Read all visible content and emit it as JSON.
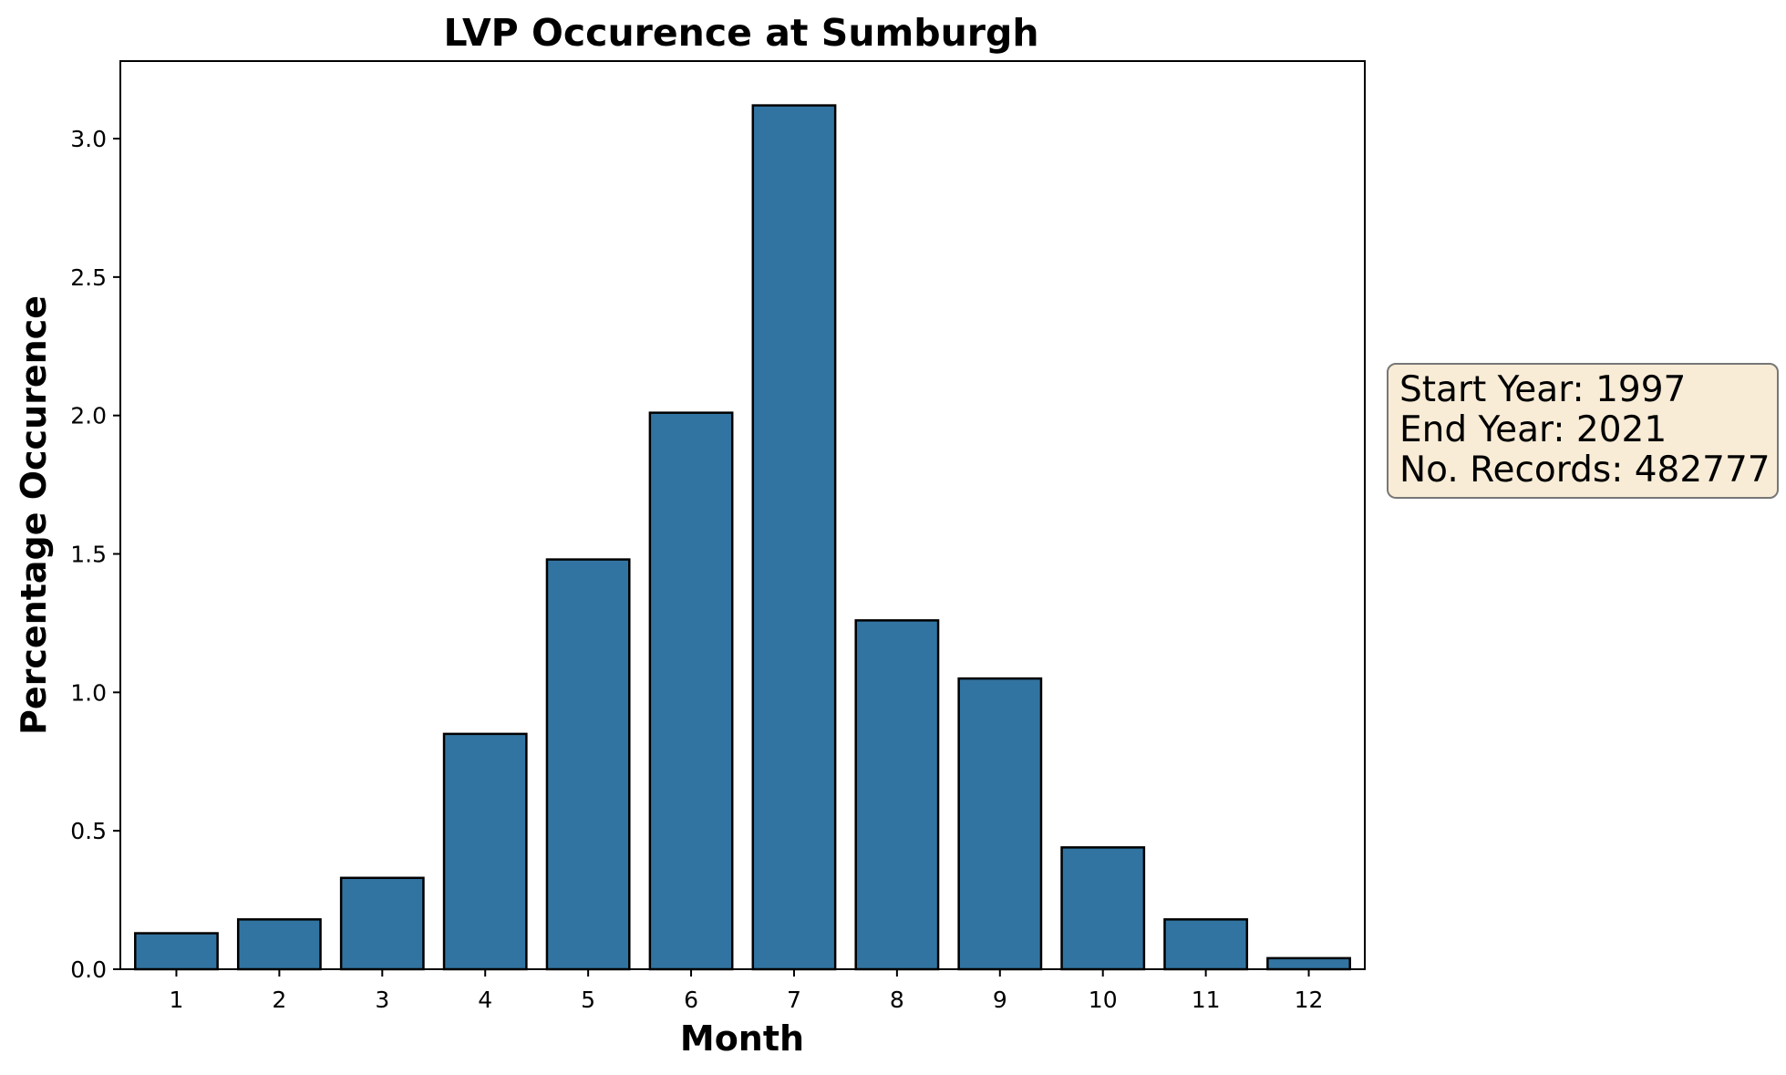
{
  "chart_data": {
    "type": "bar",
    "title": "LVP Occurence at Sumburgh",
    "xlabel": "Month",
    "ylabel": "Percentage Occurence",
    "categories": [
      "1",
      "2",
      "3",
      "4",
      "5",
      "6",
      "7",
      "8",
      "9",
      "10",
      "11",
      "12"
    ],
    "values": [
      0.13,
      0.18,
      0.33,
      0.85,
      1.48,
      2.01,
      3.12,
      1.26,
      1.05,
      0.44,
      0.18,
      0.04
    ],
    "ylim": [
      0,
      3.28
    ],
    "yticks": [
      0.0,
      0.5,
      1.0,
      1.5,
      2.0,
      2.5,
      3.0
    ],
    "ytick_labels": [
      "0.0",
      "0.5",
      "1.0",
      "1.5",
      "2.0",
      "2.5",
      "3.0"
    ],
    "grid": false,
    "bar_color": "#3274a1",
    "bar_edge_color": "#000000",
    "annotation": {
      "lines": [
        "Start Year: 1997",
        "End Year: 2021",
        "No. Records: 482777"
      ],
      "background": "#f8ecd6",
      "border": "#777777"
    }
  }
}
